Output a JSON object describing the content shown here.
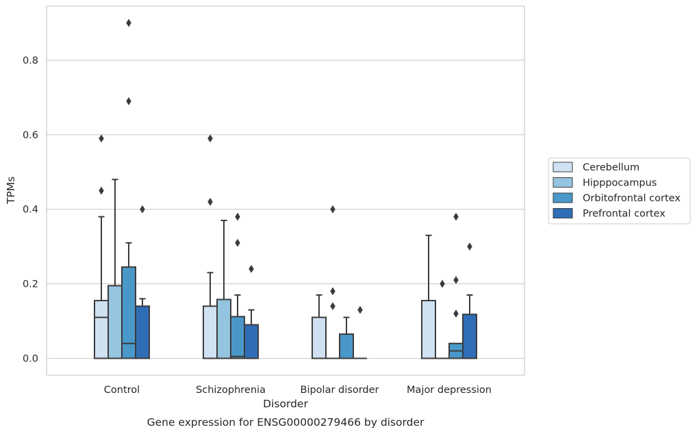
{
  "chart_data": {
    "type": "box",
    "caption": "Gene expression for ENSG00000279466 by disorder",
    "xlabel": "Disorder",
    "ylabel": "TPMs",
    "ylim": [
      -0.045,
      0.945
    ],
    "yticks": [
      0.0,
      0.2,
      0.4,
      0.6,
      0.8
    ],
    "ytick_labels": [
      "0.0",
      "0.2",
      "0.4",
      "0.6",
      "0.8"
    ],
    "grid": "horizontal",
    "legend_position": "right",
    "categories": [
      "Control",
      "Schizophrenia",
      "Bipolar disorder",
      "Major depression"
    ],
    "series": [
      {
        "name": "Cerebellum",
        "color": "#d0e1f2",
        "boxes": [
          {
            "q1": 0.0,
            "median": 0.11,
            "q3": 0.155,
            "whisker_low": 0.0,
            "whisker_high": 0.38,
            "outliers": [
              0.45,
              0.59
            ]
          },
          {
            "q1": 0.0,
            "median": 0.0,
            "q3": 0.14,
            "whisker_low": 0.0,
            "whisker_high": 0.23,
            "outliers": [
              0.42,
              0.59
            ]
          },
          {
            "q1": 0.0,
            "median": 0.0,
            "q3": 0.11,
            "whisker_low": 0.0,
            "whisker_high": 0.17,
            "outliers": []
          },
          {
            "q1": 0.0,
            "median": 0.0,
            "q3": 0.155,
            "whisker_low": 0.0,
            "whisker_high": 0.33,
            "outliers": []
          }
        ]
      },
      {
        "name": "Hipppocampus",
        "color": "#94c4df",
        "boxes": [
          {
            "q1": 0.0,
            "median": 0.0,
            "q3": 0.195,
            "whisker_low": 0.0,
            "whisker_high": 0.48,
            "outliers": []
          },
          {
            "q1": 0.0,
            "median": 0.0,
            "q3": 0.158,
            "whisker_low": 0.0,
            "whisker_high": 0.37,
            "outliers": []
          },
          {
            "q1": 0.0,
            "median": 0.0,
            "q3": 0.0,
            "whisker_low": 0.0,
            "whisker_high": 0.0,
            "outliers": [
              0.14,
              0.18,
              0.4
            ]
          },
          {
            "q1": 0.0,
            "median": 0.0,
            "q3": 0.0,
            "whisker_low": 0.0,
            "whisker_high": 0.0,
            "outliers": [
              0.2
            ]
          }
        ]
      },
      {
        "name": "Orbitofrontal cortex",
        "color": "#4a98c9",
        "boxes": [
          {
            "q1": 0.0,
            "median": 0.04,
            "q3": 0.245,
            "whisker_low": 0.0,
            "whisker_high": 0.31,
            "outliers": [
              0.69,
              0.9
            ]
          },
          {
            "q1": 0.0,
            "median": 0.005,
            "q3": 0.112,
            "whisker_low": 0.0,
            "whisker_high": 0.17,
            "outliers": [
              0.31,
              0.38
            ]
          },
          {
            "q1": 0.0,
            "median": 0.0,
            "q3": 0.065,
            "whisker_low": 0.0,
            "whisker_high": 0.11,
            "outliers": []
          },
          {
            "q1": 0.0,
            "median": 0.02,
            "q3": 0.04,
            "whisker_low": 0.0,
            "whisker_high": 0.04,
            "outliers": [
              0.12,
              0.21,
              0.38
            ]
          }
        ]
      },
      {
        "name": "Prefrontal cortex",
        "color": "#2f6eb6",
        "boxes": [
          {
            "q1": 0.0,
            "median": 0.0,
            "q3": 0.14,
            "whisker_low": 0.0,
            "whisker_high": 0.16,
            "outliers": [
              0.4
            ]
          },
          {
            "q1": 0.0,
            "median": 0.0,
            "q3": 0.09,
            "whisker_low": 0.0,
            "whisker_high": 0.13,
            "outliers": [
              0.24
            ]
          },
          {
            "q1": 0.0,
            "median": 0.0,
            "q3": 0.0,
            "whisker_low": 0.0,
            "whisker_high": 0.0,
            "outliers": [
              0.13
            ]
          },
          {
            "q1": 0.0,
            "median": 0.0,
            "q3": 0.118,
            "whisker_low": 0.0,
            "whisker_high": 0.17,
            "outliers": [
              0.3
            ]
          }
        ]
      }
    ]
  }
}
